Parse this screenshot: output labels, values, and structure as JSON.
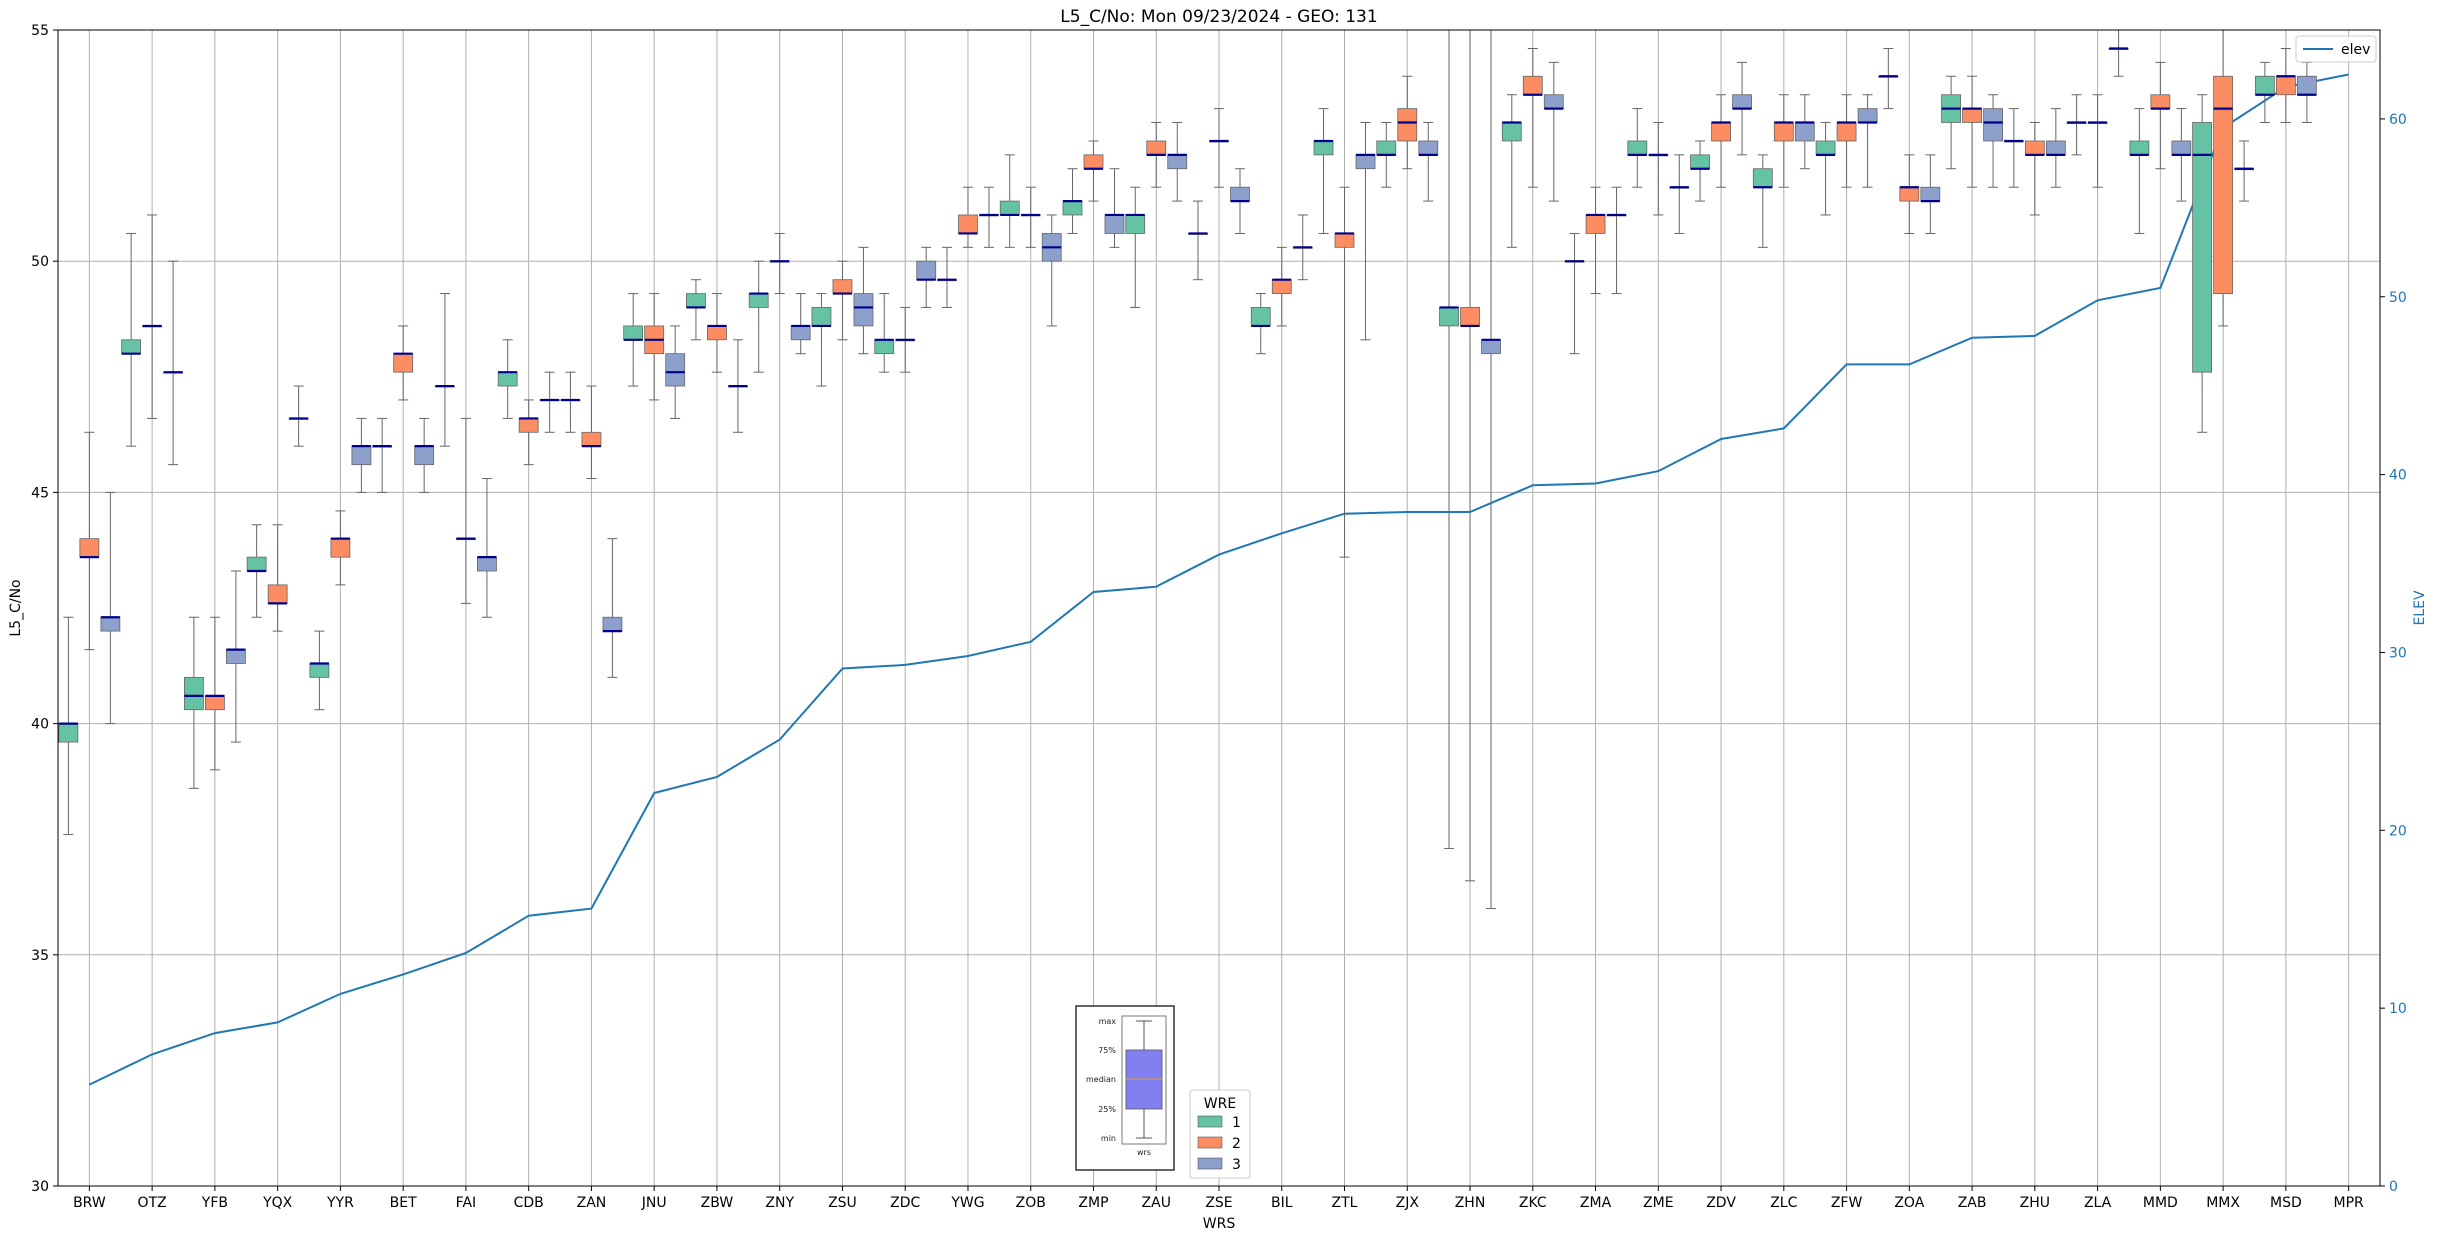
{
  "chart_data": {
    "type": "box",
    "title": "L5_C/No: Mon 09/23/2024 - GEO: 131",
    "xlabel": "WRS",
    "ylabel": "L5_C/No",
    "y2label": "ELEV",
    "ylim": [
      30,
      55
    ],
    "y2lim": [
      0,
      65
    ],
    "yticks": [
      30,
      35,
      40,
      45,
      50,
      55
    ],
    "y2ticks": [
      0,
      10,
      20,
      30,
      40,
      50,
      60
    ],
    "grid": true,
    "categories": [
      "BRW",
      "OTZ",
      "YFB",
      "YQX",
      "YYR",
      "BET",
      "FAI",
      "CDB",
      "ZAN",
      "JNU",
      "ZBW",
      "ZNY",
      "ZSU",
      "ZDC",
      "YWG",
      "ZOB",
      "ZMP",
      "ZAU",
      "ZSE",
      "BIL",
      "ZTL",
      "ZJX",
      "ZHN",
      "ZKC",
      "ZMA",
      "ZME",
      "ZDV",
      "ZLC",
      "ZFW",
      "ZOA",
      "ZAB",
      "ZHU",
      "ZLA",
      "MMD",
      "MMX",
      "MSD",
      "MPR"
    ],
    "legend": {
      "title": "WRE",
      "placement": "bottom-center",
      "entries": [
        {
          "name": "1",
          "color": "#66c2a5"
        },
        {
          "name": "2",
          "color": "#fc8d62"
        },
        {
          "name": "3",
          "color": "#8da0cb"
        }
      ]
    },
    "line_legend": {
      "name": "elev",
      "placement": "top-right",
      "color": "#1f77b4"
    },
    "box_key": {
      "placement": "bottom-center",
      "labels": [
        "max",
        "75%",
        "median",
        "25%",
        "min"
      ],
      "xlabel": "wrs",
      "color": "#8080f0"
    },
    "series_colors": {
      "1": "#66c2a5",
      "2": "#fc8d62",
      "3": "#8da0cb"
    },
    "elev": [
      5.7,
      7.4,
      8.6,
      9.2,
      10.8,
      11.9,
      13.1,
      15.2,
      15.6,
      22.1,
      23.0,
      25.1,
      29.1,
      29.3,
      29.8,
      30.6,
      33.4,
      33.7,
      35.5,
      36.7,
      37.8,
      37.9,
      37.9,
      39.4,
      39.5,
      40.2,
      42.0,
      42.6,
      46.2,
      46.2,
      47.7,
      47.8,
      49.8,
      50.5,
      59.5,
      61.8,
      62.5
    ],
    "boxes": [
      {
        "wrs": "BRW",
        "wre": 1,
        "min": 37.6,
        "q1": 39.6,
        "median": 40.0,
        "q3": 40.0,
        "max": 42.3
      },
      {
        "wrs": "BRW",
        "wre": 2,
        "min": 41.6,
        "q1": 43.6,
        "median": 43.6,
        "q3": 44.0,
        "max": 46.3
      },
      {
        "wrs": "BRW",
        "wre": 3,
        "min": 40.0,
        "q1": 42.0,
        "median": 42.3,
        "q3": 42.3,
        "max": 45.0
      },
      {
        "wrs": "OTZ",
        "wre": 1,
        "min": 46.0,
        "q1": 48.0,
        "median": 48.0,
        "q3": 48.3,
        "max": 50.6
      },
      {
        "wrs": "OTZ",
        "wre": 2,
        "min": 46.6,
        "q1": 48.6,
        "median": 48.6,
        "q3": 48.6,
        "max": 51.0
      },
      {
        "wrs": "OTZ",
        "wre": 3,
        "min": 45.6,
        "q1": 47.6,
        "median": 47.6,
        "q3": 47.6,
        "max": 50.0
      },
      {
        "wrs": "YFB",
        "wre": 1,
        "min": 38.6,
        "q1": 40.3,
        "median": 40.6,
        "q3": 41.0,
        "max": 42.3
      },
      {
        "wrs": "YFB",
        "wre": 2,
        "min": 39.0,
        "q1": 40.3,
        "median": 40.6,
        "q3": 40.6,
        "max": 42.3
      },
      {
        "wrs": "YFB",
        "wre": 3,
        "min": 39.6,
        "q1": 41.3,
        "median": 41.6,
        "q3": 41.6,
        "max": 43.3
      },
      {
        "wrs": "YQX",
        "wre": 1,
        "min": 42.3,
        "q1": 43.3,
        "median": 43.3,
        "q3": 43.6,
        "max": 44.3
      },
      {
        "wrs": "YQX",
        "wre": 2,
        "min": 42.0,
        "q1": 42.6,
        "median": 42.6,
        "q3": 43.0,
        "max": 44.3
      },
      {
        "wrs": "YQX",
        "wre": 3,
        "min": 46.0,
        "q1": 46.6,
        "median": 46.6,
        "q3": 46.6,
        "max": 47.3
      },
      {
        "wrs": "YYR",
        "wre": 1,
        "min": 40.3,
        "q1": 41.0,
        "median": 41.3,
        "q3": 41.3,
        "max": 42.0
      },
      {
        "wrs": "YYR",
        "wre": 2,
        "min": 43.0,
        "q1": 43.6,
        "median": 44.0,
        "q3": 44.0,
        "max": 44.6
      },
      {
        "wrs": "YYR",
        "wre": 3,
        "min": 45.0,
        "q1": 45.6,
        "median": 46.0,
        "q3": 46.0,
        "max": 46.6
      },
      {
        "wrs": "BET",
        "wre": 1,
        "min": 45.0,
        "q1": 46.0,
        "median": 46.0,
        "q3": 46.0,
        "max": 46.6
      },
      {
        "wrs": "BET",
        "wre": 2,
        "min": 47.0,
        "q1": 47.6,
        "median": 48.0,
        "q3": 48.0,
        "max": 48.6
      },
      {
        "wrs": "BET",
        "wre": 3,
        "min": 45.0,
        "q1": 45.6,
        "median": 46.0,
        "q3": 46.0,
        "max": 46.6
      },
      {
        "wrs": "FAI",
        "wre": 1,
        "min": 46.0,
        "q1": 47.3,
        "median": 47.3,
        "q3": 47.3,
        "max": 49.3
      },
      {
        "wrs": "FAI",
        "wre": 2,
        "min": 42.6,
        "q1": 44.0,
        "median": 44.0,
        "q3": 44.0,
        "max": 46.6
      },
      {
        "wrs": "FAI",
        "wre": 3,
        "min": 42.3,
        "q1": 43.3,
        "median": 43.6,
        "q3": 43.6,
        "max": 45.3
      },
      {
        "wrs": "CDB",
        "wre": 1,
        "min": 46.6,
        "q1": 47.3,
        "median": 47.6,
        "q3": 47.6,
        "max": 48.3
      },
      {
        "wrs": "CDB",
        "wre": 2,
        "min": 45.6,
        "q1": 46.3,
        "median": 46.6,
        "q3": 46.6,
        "max": 47.0
      },
      {
        "wrs": "CDB",
        "wre": 3,
        "min": 46.3,
        "q1": 47.0,
        "median": 47.0,
        "q3": 47.0,
        "max": 47.6
      },
      {
        "wrs": "ZAN",
        "wre": 1,
        "min": 46.3,
        "q1": 47.0,
        "median": 47.0,
        "q3": 47.0,
        "max": 47.6
      },
      {
        "wrs": "ZAN",
        "wre": 2,
        "min": 45.3,
        "q1": 46.0,
        "median": 46.0,
        "q3": 46.3,
        "max": 47.3
      },
      {
        "wrs": "ZAN",
        "wre": 3,
        "min": 41.0,
        "q1": 42.0,
        "median": 42.0,
        "q3": 42.3,
        "max": 44.0
      },
      {
        "wrs": "JNU",
        "wre": 1,
        "min": 47.3,
        "q1": 48.3,
        "median": 48.3,
        "q3": 48.6,
        "max": 49.3
      },
      {
        "wrs": "JNU",
        "wre": 2,
        "min": 47.0,
        "q1": 48.0,
        "median": 48.3,
        "q3": 48.6,
        "max": 49.3
      },
      {
        "wrs": "JNU",
        "wre": 3,
        "min": 46.6,
        "q1": 47.3,
        "median": 47.6,
        "q3": 48.0,
        "max": 48.6
      },
      {
        "wrs": "ZBW",
        "wre": 1,
        "min": 48.3,
        "q1": 49.0,
        "median": 49.0,
        "q3": 49.3,
        "max": 49.6
      },
      {
        "wrs": "ZBW",
        "wre": 2,
        "min": 47.6,
        "q1": 48.3,
        "median": 48.6,
        "q3": 48.6,
        "max": 49.3
      },
      {
        "wrs": "ZBW",
        "wre": 3,
        "min": 46.3,
        "q1": 47.3,
        "median": 47.3,
        "q3": 47.3,
        "max": 48.3
      },
      {
        "wrs": "ZNY",
        "wre": 1,
        "min": 47.6,
        "q1": 49.0,
        "median": 49.3,
        "q3": 49.3,
        "max": 50.0
      },
      {
        "wrs": "ZNY",
        "wre": 2,
        "min": 49.3,
        "q1": 50.0,
        "median": 50.0,
        "q3": 50.0,
        "max": 50.6
      },
      {
        "wrs": "ZNY",
        "wre": 3,
        "min": 48.0,
        "q1": 48.3,
        "median": 48.6,
        "q3": 48.6,
        "max": 49.3
      },
      {
        "wrs": "ZSU",
        "wre": 1,
        "min": 47.3,
        "q1": 48.6,
        "median": 48.6,
        "q3": 49.0,
        "max": 49.3
      },
      {
        "wrs": "ZSU",
        "wre": 2,
        "min": 48.3,
        "q1": 49.3,
        "median": 49.3,
        "q3": 49.6,
        "max": 50.0
      },
      {
        "wrs": "ZSU",
        "wre": 3,
        "min": 48.0,
        "q1": 48.6,
        "median": 49.0,
        "q3": 49.3,
        "max": 50.3
      },
      {
        "wrs": "ZDC",
        "wre": 1,
        "min": 47.6,
        "q1": 48.0,
        "median": 48.3,
        "q3": 48.3,
        "max": 49.3
      },
      {
        "wrs": "ZDC",
        "wre": 2,
        "min": 47.6,
        "q1": 48.3,
        "median": 48.3,
        "q3": 48.3,
        "max": 49.0
      },
      {
        "wrs": "ZDC",
        "wre": 3,
        "min": 49.0,
        "q1": 49.6,
        "median": 49.6,
        "q3": 50.0,
        "max": 50.3
      },
      {
        "wrs": "YWG",
        "wre": 1,
        "min": 49.0,
        "q1": 49.6,
        "median": 49.6,
        "q3": 49.6,
        "max": 50.3
      },
      {
        "wrs": "YWG",
        "wre": 2,
        "min": 50.3,
        "q1": 50.6,
        "median": 50.6,
        "q3": 51.0,
        "max": 51.6
      },
      {
        "wrs": "YWG",
        "wre": 3,
        "min": 50.3,
        "q1": 51.0,
        "median": 51.0,
        "q3": 51.0,
        "max": 51.6
      },
      {
        "wrs": "ZOB",
        "wre": 1,
        "min": 50.3,
        "q1": 51.0,
        "median": 51.0,
        "q3": 51.3,
        "max": 52.3
      },
      {
        "wrs": "ZOB",
        "wre": 2,
        "min": 50.3,
        "q1": 51.0,
        "median": 51.0,
        "q3": 51.0,
        "max": 51.6
      },
      {
        "wrs": "ZOB",
        "wre": 3,
        "min": 48.6,
        "q1": 50.0,
        "median": 50.3,
        "q3": 50.6,
        "max": 51.0
      },
      {
        "wrs": "ZMP",
        "wre": 1,
        "min": 50.6,
        "q1": 51.0,
        "median": 51.3,
        "q3": 51.3,
        "max": 52.0
      },
      {
        "wrs": "ZMP",
        "wre": 2,
        "min": 51.3,
        "q1": 52.0,
        "median": 52.0,
        "q3": 52.3,
        "max": 52.6
      },
      {
        "wrs": "ZMP",
        "wre": 3,
        "min": 50.3,
        "q1": 50.6,
        "median": 51.0,
        "q3": 51.0,
        "max": 52.0
      },
      {
        "wrs": "ZAU",
        "wre": 1,
        "min": 49.0,
        "q1": 50.6,
        "median": 51.0,
        "q3": 51.0,
        "max": 51.6
      },
      {
        "wrs": "ZAU",
        "wre": 2,
        "min": 51.6,
        "q1": 52.3,
        "median": 52.3,
        "q3": 52.6,
        "max": 53.0
      },
      {
        "wrs": "ZAU",
        "wre": 3,
        "min": 51.3,
        "q1": 52.0,
        "median": 52.3,
        "q3": 52.3,
        "max": 53.0
      },
      {
        "wrs": "ZSE",
        "wre": 1,
        "min": 49.6,
        "q1": 50.6,
        "median": 50.6,
        "q3": 50.6,
        "max": 51.3
      },
      {
        "wrs": "ZSE",
        "wre": 2,
        "min": 51.6,
        "q1": 52.6,
        "median": 52.6,
        "q3": 52.6,
        "max": 53.3
      },
      {
        "wrs": "ZSE",
        "wre": 3,
        "min": 50.6,
        "q1": 51.3,
        "median": 51.3,
        "q3": 51.6,
        "max": 52.0
      },
      {
        "wrs": "BIL",
        "wre": 1,
        "min": 48.0,
        "q1": 48.6,
        "median": 48.6,
        "q3": 49.0,
        "max": 49.3
      },
      {
        "wrs": "BIL",
        "wre": 2,
        "min": 48.6,
        "q1": 49.3,
        "median": 49.6,
        "q3": 49.6,
        "max": 50.3
      },
      {
        "wrs": "BIL",
        "wre": 3,
        "min": 49.6,
        "q1": 50.3,
        "median": 50.3,
        "q3": 50.3,
        "max": 51.0
      },
      {
        "wrs": "ZTL",
        "wre": 1,
        "min": 50.6,
        "q1": 52.3,
        "median": 52.6,
        "q3": 52.6,
        "max": 53.3
      },
      {
        "wrs": "ZTL",
        "wre": 2,
        "min": 43.6,
        "q1": 50.3,
        "median": 50.6,
        "q3": 50.6,
        "max": 51.6
      },
      {
        "wrs": "ZTL",
        "wre": 3,
        "min": 48.3,
        "q1": 52.0,
        "median": 52.3,
        "q3": 52.3,
        "max": 53.0
      },
      {
        "wrs": "ZJX",
        "wre": 1,
        "min": 51.6,
        "q1": 52.3,
        "median": 52.3,
        "q3": 52.6,
        "max": 53.0
      },
      {
        "wrs": "ZJX",
        "wre": 2,
        "min": 52.0,
        "q1": 52.6,
        "median": 53.0,
        "q3": 53.3,
        "max": 54.0
      },
      {
        "wrs": "ZJX",
        "wre": 3,
        "min": 51.3,
        "q1": 52.3,
        "median": 52.3,
        "q3": 52.6,
        "max": 53.0
      },
      {
        "wrs": "ZHN",
        "wre": 1,
        "min": 37.3,
        "q1": 48.6,
        "median": 49.0,
        "q3": 49.0,
        "max": 55.0
      },
      {
        "wrs": "ZHN",
        "wre": 2,
        "min": 36.6,
        "q1": 48.6,
        "median": 48.6,
        "q3": 49.0,
        "max": 55.0
      },
      {
        "wrs": "ZHN",
        "wre": 3,
        "min": 36.0,
        "q1": 48.0,
        "median": 48.3,
        "q3": 48.3,
        "max": 55.0
      },
      {
        "wrs": "ZKC",
        "wre": 1,
        "min": 50.3,
        "q1": 52.6,
        "median": 53.0,
        "q3": 53.0,
        "max": 53.6
      },
      {
        "wrs": "ZKC",
        "wre": 2,
        "min": 51.6,
        "q1": 53.6,
        "median": 53.6,
        "q3": 54.0,
        "max": 54.6
      },
      {
        "wrs": "ZKC",
        "wre": 3,
        "min": 51.3,
        "q1": 53.3,
        "median": 53.3,
        "q3": 53.6,
        "max": 54.3
      },
      {
        "wrs": "ZMA",
        "wre": 1,
        "min": 48.0,
        "q1": 50.0,
        "median": 50.0,
        "q3": 50.0,
        "max": 50.6
      },
      {
        "wrs": "ZMA",
        "wre": 2,
        "min": 49.3,
        "q1": 50.6,
        "median": 51.0,
        "q3": 51.0,
        "max": 51.6
      },
      {
        "wrs": "ZMA",
        "wre": 3,
        "min": 49.3,
        "q1": 51.0,
        "median": 51.0,
        "q3": 51.0,
        "max": 51.6
      },
      {
        "wrs": "ZME",
        "wre": 1,
        "min": 51.6,
        "q1": 52.3,
        "median": 52.3,
        "q3": 52.6,
        "max": 53.3
      },
      {
        "wrs": "ZME",
        "wre": 2,
        "min": 51.0,
        "q1": 52.3,
        "median": 52.3,
        "q3": 52.3,
        "max": 53.0
      },
      {
        "wrs": "ZME",
        "wre": 3,
        "min": 50.6,
        "q1": 51.6,
        "median": 51.6,
        "q3": 51.6,
        "max": 52.3
      },
      {
        "wrs": "ZDV",
        "wre": 1,
        "min": 51.3,
        "q1": 52.0,
        "median": 52.0,
        "q3": 52.3,
        "max": 52.6
      },
      {
        "wrs": "ZDV",
        "wre": 2,
        "min": 51.6,
        "q1": 52.6,
        "median": 53.0,
        "q3": 53.0,
        "max": 53.6
      },
      {
        "wrs": "ZDV",
        "wre": 3,
        "min": 52.3,
        "q1": 53.3,
        "median": 53.3,
        "q3": 53.6,
        "max": 54.3
      },
      {
        "wrs": "ZLC",
        "wre": 1,
        "min": 50.3,
        "q1": 51.6,
        "median": 51.6,
        "q3": 52.0,
        "max": 52.3
      },
      {
        "wrs": "ZLC",
        "wre": 2,
        "min": 51.6,
        "q1": 52.6,
        "median": 53.0,
        "q3": 53.0,
        "max": 53.6
      },
      {
        "wrs": "ZLC",
        "wre": 3,
        "min": 52.0,
        "q1": 52.6,
        "median": 53.0,
        "q3": 53.0,
        "max": 53.6
      },
      {
        "wrs": "ZFW",
        "wre": 1,
        "min": 51.0,
        "q1": 52.3,
        "median": 52.3,
        "q3": 52.6,
        "max": 53.0
      },
      {
        "wrs": "ZFW",
        "wre": 2,
        "min": 51.6,
        "q1": 52.6,
        "median": 53.0,
        "q3": 53.0,
        "max": 53.6
      },
      {
        "wrs": "ZFW",
        "wre": 3,
        "min": 51.6,
        "q1": 53.0,
        "median": 53.0,
        "q3": 53.3,
        "max": 53.6
      },
      {
        "wrs": "ZOA",
        "wre": 1,
        "min": 53.3,
        "q1": 54.0,
        "median": 54.0,
        "q3": 54.0,
        "max": 54.6
      },
      {
        "wrs": "ZOA",
        "wre": 2,
        "min": 50.6,
        "q1": 51.3,
        "median": 51.6,
        "q3": 51.6,
        "max": 52.3
      },
      {
        "wrs": "ZOA",
        "wre": 3,
        "min": 50.6,
        "q1": 51.3,
        "median": 51.3,
        "q3": 51.6,
        "max": 52.3
      },
      {
        "wrs": "ZAB",
        "wre": 1,
        "min": 52.0,
        "q1": 53.0,
        "median": 53.3,
        "q3": 53.6,
        "max": 54.0
      },
      {
        "wrs": "ZAB",
        "wre": 2,
        "min": 51.6,
        "q1": 53.0,
        "median": 53.3,
        "q3": 53.3,
        "max": 54.0
      },
      {
        "wrs": "ZAB",
        "wre": 3,
        "min": 51.6,
        "q1": 52.6,
        "median": 53.0,
        "q3": 53.3,
        "max": 53.6
      },
      {
        "wrs": "ZHU",
        "wre": 1,
        "min": 51.6,
        "q1": 52.6,
        "median": 52.6,
        "q3": 52.6,
        "max": 53.3
      },
      {
        "wrs": "ZHU",
        "wre": 2,
        "min": 51.0,
        "q1": 52.3,
        "median": 52.3,
        "q3": 52.6,
        "max": 53.0
      },
      {
        "wrs": "ZHU",
        "wre": 3,
        "min": 51.6,
        "q1": 52.3,
        "median": 52.3,
        "q3": 52.6,
        "max": 53.3
      },
      {
        "wrs": "ZLA",
        "wre": 1,
        "min": 52.3,
        "q1": 53.0,
        "median": 53.0,
        "q3": 53.0,
        "max": 53.6
      },
      {
        "wrs": "ZLA",
        "wre": 2,
        "min": 51.6,
        "q1": 53.0,
        "median": 53.0,
        "q3": 53.0,
        "max": 53.6
      },
      {
        "wrs": "ZLA",
        "wre": 3,
        "min": 54.0,
        "q1": 54.6,
        "median": 54.6,
        "q3": 54.6,
        "max": 55.0
      },
      {
        "wrs": "MMD",
        "wre": 1,
        "min": 50.6,
        "q1": 52.3,
        "median": 52.3,
        "q3": 52.6,
        "max": 53.3
      },
      {
        "wrs": "MMD",
        "wre": 2,
        "min": 52.0,
        "q1": 53.3,
        "median": 53.3,
        "q3": 53.6,
        "max": 54.3
      },
      {
        "wrs": "MMD",
        "wre": 3,
        "min": 51.3,
        "q1": 52.3,
        "median": 52.3,
        "q3": 52.6,
        "max": 53.3
      },
      {
        "wrs": "MMX",
        "wre": 1,
        "min": 46.3,
        "q1": 47.6,
        "median": 52.3,
        "q3": 53.0,
        "max": 53.6
      },
      {
        "wrs": "MMX",
        "wre": 2,
        "min": 48.6,
        "q1": 49.3,
        "median": 53.3,
        "q3": 54.0,
        "max": 55.0
      },
      {
        "wrs": "MMX",
        "wre": 3,
        "min": 51.3,
        "q1": 52.0,
        "median": 52.0,
        "q3": 52.0,
        "max": 52.6
      },
      {
        "wrs": "MSD",
        "wre": 1,
        "min": 53.0,
        "q1": 53.6,
        "median": 53.6,
        "q3": 54.0,
        "max": 54.3
      },
      {
        "wrs": "MSD",
        "wre": 2,
        "min": 53.0,
        "q1": 53.6,
        "median": 54.0,
        "q3": 54.0,
        "max": 54.6
      },
      {
        "wrs": "MSD",
        "wre": 3,
        "min": 53.0,
        "q1": 53.6,
        "median": 53.6,
        "q3": 54.0,
        "max": 54.3
      }
    ]
  }
}
